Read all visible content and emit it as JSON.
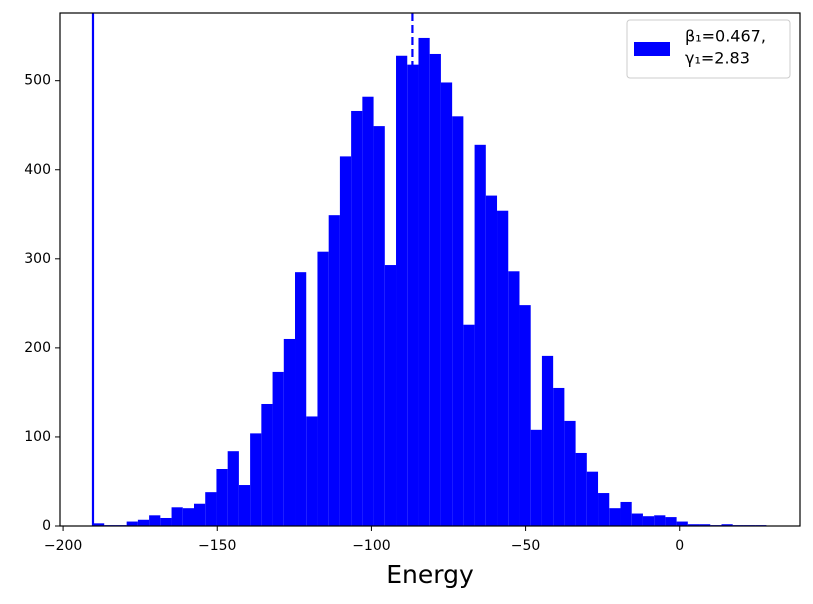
{
  "chart_data": {
    "type": "histogram",
    "xlabel": "Energy",
    "bins": [
      -190.3,
      -186.66,
      -183.02,
      -179.38,
      -175.74,
      -172.1,
      -168.46,
      -164.82,
      -161.18,
      -157.54,
      -153.9,
      -150.26,
      -146.62,
      -142.98,
      -139.34,
      -135.7,
      -132.06,
      -128.42,
      -124.78,
      -121.14,
      -117.5,
      -113.86,
      -110.22,
      -106.58,
      -102.94,
      -99.3,
      -95.66,
      -92.02,
      -88.38,
      -84.74,
      -81.1,
      -77.46,
      -73.82,
      -70.18,
      -66.54,
      -62.9,
      -59.26,
      -55.62,
      -51.98,
      -48.34,
      -44.7,
      -41.06,
      -37.42,
      -33.78,
      -30.14,
      -26.5,
      -22.86,
      -19.22,
      -15.58,
      -11.94,
      -8.3,
      -4.66,
      -1.02,
      2.62,
      6.26,
      9.9,
      13.54,
      17.18,
      20.82,
      24.46,
      28.1
    ],
    "series": [
      {
        "name": [
          "β₁=0.467,",
          "γ₁=2.83"
        ],
        "color": "#0000ff",
        "values": [
          3,
          1,
          1,
          5,
          7,
          12,
          9,
          21,
          20,
          25,
          38,
          64,
          84,
          46,
          104,
          137,
          173,
          210,
          285,
          123,
          308,
          349,
          415,
          466,
          482,
          449,
          293,
          528,
          518,
          548,
          530,
          498,
          460,
          226,
          428,
          371,
          354,
          286,
          248,
          108,
          191,
          155,
          118,
          82,
          61,
          37,
          20,
          27,
          14,
          11,
          12,
          10,
          5,
          2,
          2,
          1,
          2,
          1,
          1,
          1
        ]
      }
    ],
    "vlines": [
      {
        "value": -190.3,
        "style": "solid",
        "color": "#0000ff"
      },
      {
        "value": -86.7,
        "style": "dashed",
        "color": "#0000ff"
      }
    ],
    "xlim": [
      -201,
      39
    ],
    "ylim": [
      0,
      576
    ],
    "xticks": [
      {
        "value": -200,
        "label": "−200"
      },
      {
        "value": -150,
        "label": "−150"
      },
      {
        "value": -100,
        "label": "−100"
      },
      {
        "value": -50,
        "label": "−50"
      },
      0
    ],
    "yticks": [
      0,
      100,
      200,
      300,
      400,
      500
    ],
    "legend": "upper right"
  }
}
